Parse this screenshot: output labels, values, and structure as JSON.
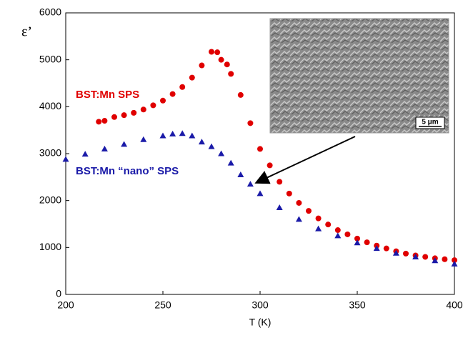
{
  "chart_data": {
    "type": "scatter",
    "ylabel": "ε’",
    "xlabel": "T (K)",
    "xlim": [
      200,
      400
    ],
    "xticks": [
      200,
      250,
      300,
      350,
      400
    ],
    "ylim": [
      0,
      6000
    ],
    "yticks": [
      0,
      1000,
      2000,
      3000,
      4000,
      5000,
      6000
    ],
    "grid": false,
    "series": [
      {
        "name": "BST:Mn SPS",
        "color": "#e00000",
        "marker": "circle",
        "x": [
          217,
          220,
          225,
          230,
          235,
          240,
          245,
          250,
          255,
          260,
          265,
          270,
          275,
          278,
          280,
          283,
          285,
          290,
          295,
          300,
          305,
          310,
          315,
          320,
          325,
          330,
          335,
          340,
          345,
          350,
          355,
          360,
          365,
          370,
          375,
          380,
          385,
          390,
          395,
          400
        ],
        "values": [
          3680,
          3700,
          3780,
          3820,
          3870,
          3940,
          4030,
          4130,
          4270,
          4420,
          4620,
          4880,
          5170,
          5160,
          5000,
          4900,
          4700,
          4250,
          3650,
          3100,
          2750,
          2400,
          2150,
          1950,
          1780,
          1620,
          1490,
          1370,
          1280,
          1190,
          1110,
          1040,
          980,
          920,
          870,
          830,
          800,
          770,
          750,
          730
        ]
      },
      {
        "name": "BST:Mn “nano” SPS",
        "color": "#1a1aa8",
        "marker": "triangle",
        "x": [
          200,
          210,
          220,
          230,
          240,
          250,
          255,
          260,
          265,
          270,
          275,
          280,
          285,
          290,
          295,
          300,
          310,
          320,
          330,
          340,
          350,
          360,
          370,
          380,
          390,
          400
        ],
        "values": [
          2880,
          2990,
          3100,
          3200,
          3300,
          3380,
          3420,
          3430,
          3380,
          3250,
          3150,
          3000,
          2800,
          2550,
          2350,
          2150,
          1850,
          1600,
          1400,
          1250,
          1100,
          980,
          880,
          800,
          720,
          650
        ]
      }
    ],
    "inset_scale_label": "5 μm"
  }
}
